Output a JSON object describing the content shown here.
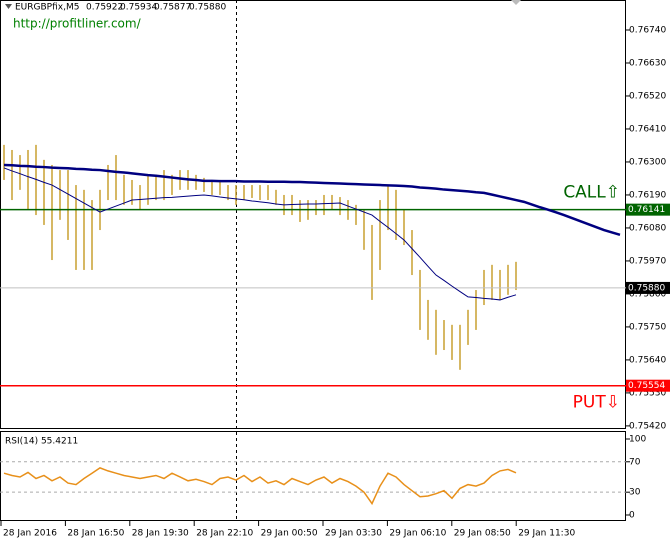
{
  "header": {
    "symbol": "EURGBPfix,M5",
    "values": [
      "0.75922",
      "0.75934",
      "0.75877",
      "0.75880"
    ],
    "url": "http://profitliner.com/"
  },
  "chart_data": [
    {
      "type": "ohlc",
      "ylim": [
        0.75413,
        0.7684
      ],
      "yticks": [
        {
          "value": 0.7542,
          "label": "0.75420"
        },
        {
          "value": 0.7553,
          "label": "0.75530"
        },
        {
          "value": 0.7564,
          "label": "0.75640"
        },
        {
          "value": 0.7575,
          "label": "0.75750"
        },
        {
          "value": 0.7586,
          "label": "0.75860"
        },
        {
          "value": 0.7597,
          "label": "0.75970"
        },
        {
          "value": 0.7608,
          "label": "0.76080"
        },
        {
          "value": 0.7619,
          "label": "0.76190"
        },
        {
          "value": 0.763,
          "label": "0.76300"
        },
        {
          "value": 0.7641,
          "label": "0.76410"
        },
        {
          "value": 0.7652,
          "label": "0.76520"
        },
        {
          "value": 0.7663,
          "label": "0.76630"
        },
        {
          "value": 0.7674,
          "label": "0.76740"
        }
      ],
      "x_labels": [
        "28 Jan 2016",
        "28 Jan 16:50",
        "28 Jan 19:30",
        "28 Jan 22:10",
        "29 Jan 00:50",
        "29 Jan 03:30",
        "29 Jan 06:10",
        "29 Jan 08:50",
        "29 Jan 11:30"
      ],
      "bar_color": "#c8a030",
      "bars": {
        "high": [
          0.76357,
          0.7634,
          0.76323,
          0.7634,
          0.76357,
          0.76307,
          0.7629,
          0.76273,
          0.76273,
          0.76223,
          0.76207,
          0.76173,
          0.76207,
          0.7629,
          0.76323,
          0.76257,
          0.7624,
          0.76223,
          0.76257,
          0.76257,
          0.76273,
          0.76257,
          0.76273,
          0.76273,
          0.76257,
          0.76247,
          0.7624,
          0.7624,
          0.76223,
          0.76223,
          0.76223,
          0.76223,
          0.76223,
          0.76223,
          0.76207,
          0.7619,
          0.7619,
          0.76173,
          0.76173,
          0.76173,
          0.7619,
          0.7619,
          0.76183,
          0.76173,
          0.76157,
          0.7614,
          0.7609,
          0.76173,
          0.76223,
          0.76207,
          0.7614,
          0.76073,
          0.7594,
          0.7584,
          0.75807,
          0.75773,
          0.75757,
          0.75757,
          0.75807,
          0.75873,
          0.7594,
          0.75957,
          0.7594,
          0.75957,
          0.75967
        ],
        "low": [
          0.7624,
          0.76173,
          0.76207,
          0.7614,
          0.76123,
          0.7609,
          0.75973,
          0.76107,
          0.7604,
          0.7594,
          0.7594,
          0.7594,
          0.76073,
          0.76173,
          0.76173,
          0.76157,
          0.76157,
          0.7614,
          0.76157,
          0.76173,
          0.76173,
          0.7619,
          0.76207,
          0.76207,
          0.76207,
          0.762,
          0.7619,
          0.7619,
          0.76173,
          0.76157,
          0.76173,
          0.7618,
          0.76173,
          0.76173,
          0.76157,
          0.76123,
          0.76123,
          0.761,
          0.76107,
          0.76123,
          0.76123,
          0.7614,
          0.76123,
          0.76107,
          0.7609,
          0.76007,
          0.7584,
          0.7594,
          0.76073,
          0.7604,
          0.76023,
          0.75923,
          0.7574,
          0.75707,
          0.75657,
          0.75673,
          0.7564,
          0.75607,
          0.7569,
          0.7574,
          0.75823,
          0.7584,
          0.7584,
          0.75857,
          0.75873
        ]
      },
      "series": [
        {
          "color": "#000080",
          "width": 2.5,
          "values": [
            0.7629,
            0.76289,
            0.76287,
            0.76286,
            0.76284,
            0.76283,
            0.76281,
            0.7628,
            0.76279,
            0.76277,
            0.76276,
            0.76274,
            0.76273,
            0.7627,
            0.76267,
            0.76265,
            0.76262,
            0.76259,
            0.76256,
            0.76254,
            0.76251,
            0.76248,
            0.76245,
            0.76242,
            0.7624,
            0.76237,
            0.76237,
            0.76236,
            0.76236,
            0.76236,
            0.76235,
            0.76235,
            0.76235,
            0.76234,
            0.76234,
            0.76234,
            0.76233,
            0.76233,
            0.76232,
            0.76231,
            0.7623,
            0.76229,
            0.76228,
            0.76227,
            0.76226,
            0.76225,
            0.76224,
            0.76223,
            0.76222,
            0.76221,
            0.7622,
            0.76218,
            0.76215,
            0.76213,
            0.76211,
            0.76208,
            0.76206,
            0.76204,
            0.76202,
            0.76199,
            0.76197,
            0.76191,
            0.76185,
            0.76179,
            0.76173,
            0.76167,
            0.76158,
            0.76149,
            0.76141,
            0.76132,
            0.76123,
            0.76113,
            0.76103,
            0.76093,
            0.76083,
            0.76073,
            0.76065,
            0.76057
          ]
        },
        {
          "color": "#000080",
          "width": 1,
          "values": [
            0.7628,
            0.7627,
            0.76261,
            0.76251,
            0.76242,
            0.76232,
            0.76223,
            0.76208,
            0.76193,
            0.76178,
            0.76163,
            0.76148,
            0.76133,
            0.76143,
            0.76153,
            0.76163,
            0.76173,
            0.76175,
            0.76177,
            0.76179,
            0.76181,
            0.76182,
            0.76184,
            0.76186,
            0.76188,
            0.7619,
            0.76187,
            0.76183,
            0.7618,
            0.76177,
            0.76174,
            0.7617,
            0.76167,
            0.76164,
            0.7616,
            0.76157,
            0.76158,
            0.76159,
            0.7616,
            0.7616,
            0.76161,
            0.76162,
            0.76163,
            0.76153,
            0.76143,
            0.76133,
            0.76123,
            0.76102,
            0.76082,
            0.76061,
            0.7604,
            0.76011,
            0.75982,
            0.75952,
            0.75923,
            0.75905,
            0.75886,
            0.75868,
            0.7585,
            0.75848,
            0.75845,
            0.75843,
            0.7584,
            0.75849,
            0.75857
          ]
        }
      ],
      "levels": [
        {
          "name": "CALL⇧",
          "value": 0.76141,
          "value_label": "0.76141",
          "color": "#006400",
          "box_color": "#006400",
          "label_side": "above"
        },
        {
          "value": 0.7588,
          "value_label": "0.75880",
          "color": "#c0c0c0",
          "box_color": "#000000"
        },
        {
          "name": "PUT⇩",
          "value": 0.75554,
          "value_label": "0.75554",
          "color": "#ff0000",
          "box_color": "#ff0000",
          "label_side": "below"
        }
      ]
    },
    {
      "type": "line",
      "title": "RSI(14) 55.4211",
      "ylim": [
        -6.6,
        109.2
      ],
      "yticks": [
        100,
        70,
        30,
        0
      ],
      "levels": [
        70,
        30
      ],
      "series": [
        {
          "color": "#e8901a",
          "width": 1.5,
          "values": [
            55,
            52,
            50,
            56,
            48,
            52,
            45,
            50,
            42,
            40,
            48,
            55,
            62,
            58,
            55,
            52,
            50,
            48,
            50,
            52,
            48,
            55,
            50,
            45,
            47,
            44,
            40,
            48,
            50,
            46,
            52,
            44,
            50,
            42,
            45,
            40,
            48,
            44,
            40,
            46,
            50,
            42,
            48,
            44,
            38,
            30,
            15,
            38,
            55,
            50,
            40,
            32,
            24,
            25,
            28,
            32,
            22,
            35,
            40,
            38,
            42,
            52,
            58,
            60,
            55.42
          ]
        }
      ]
    }
  ]
}
